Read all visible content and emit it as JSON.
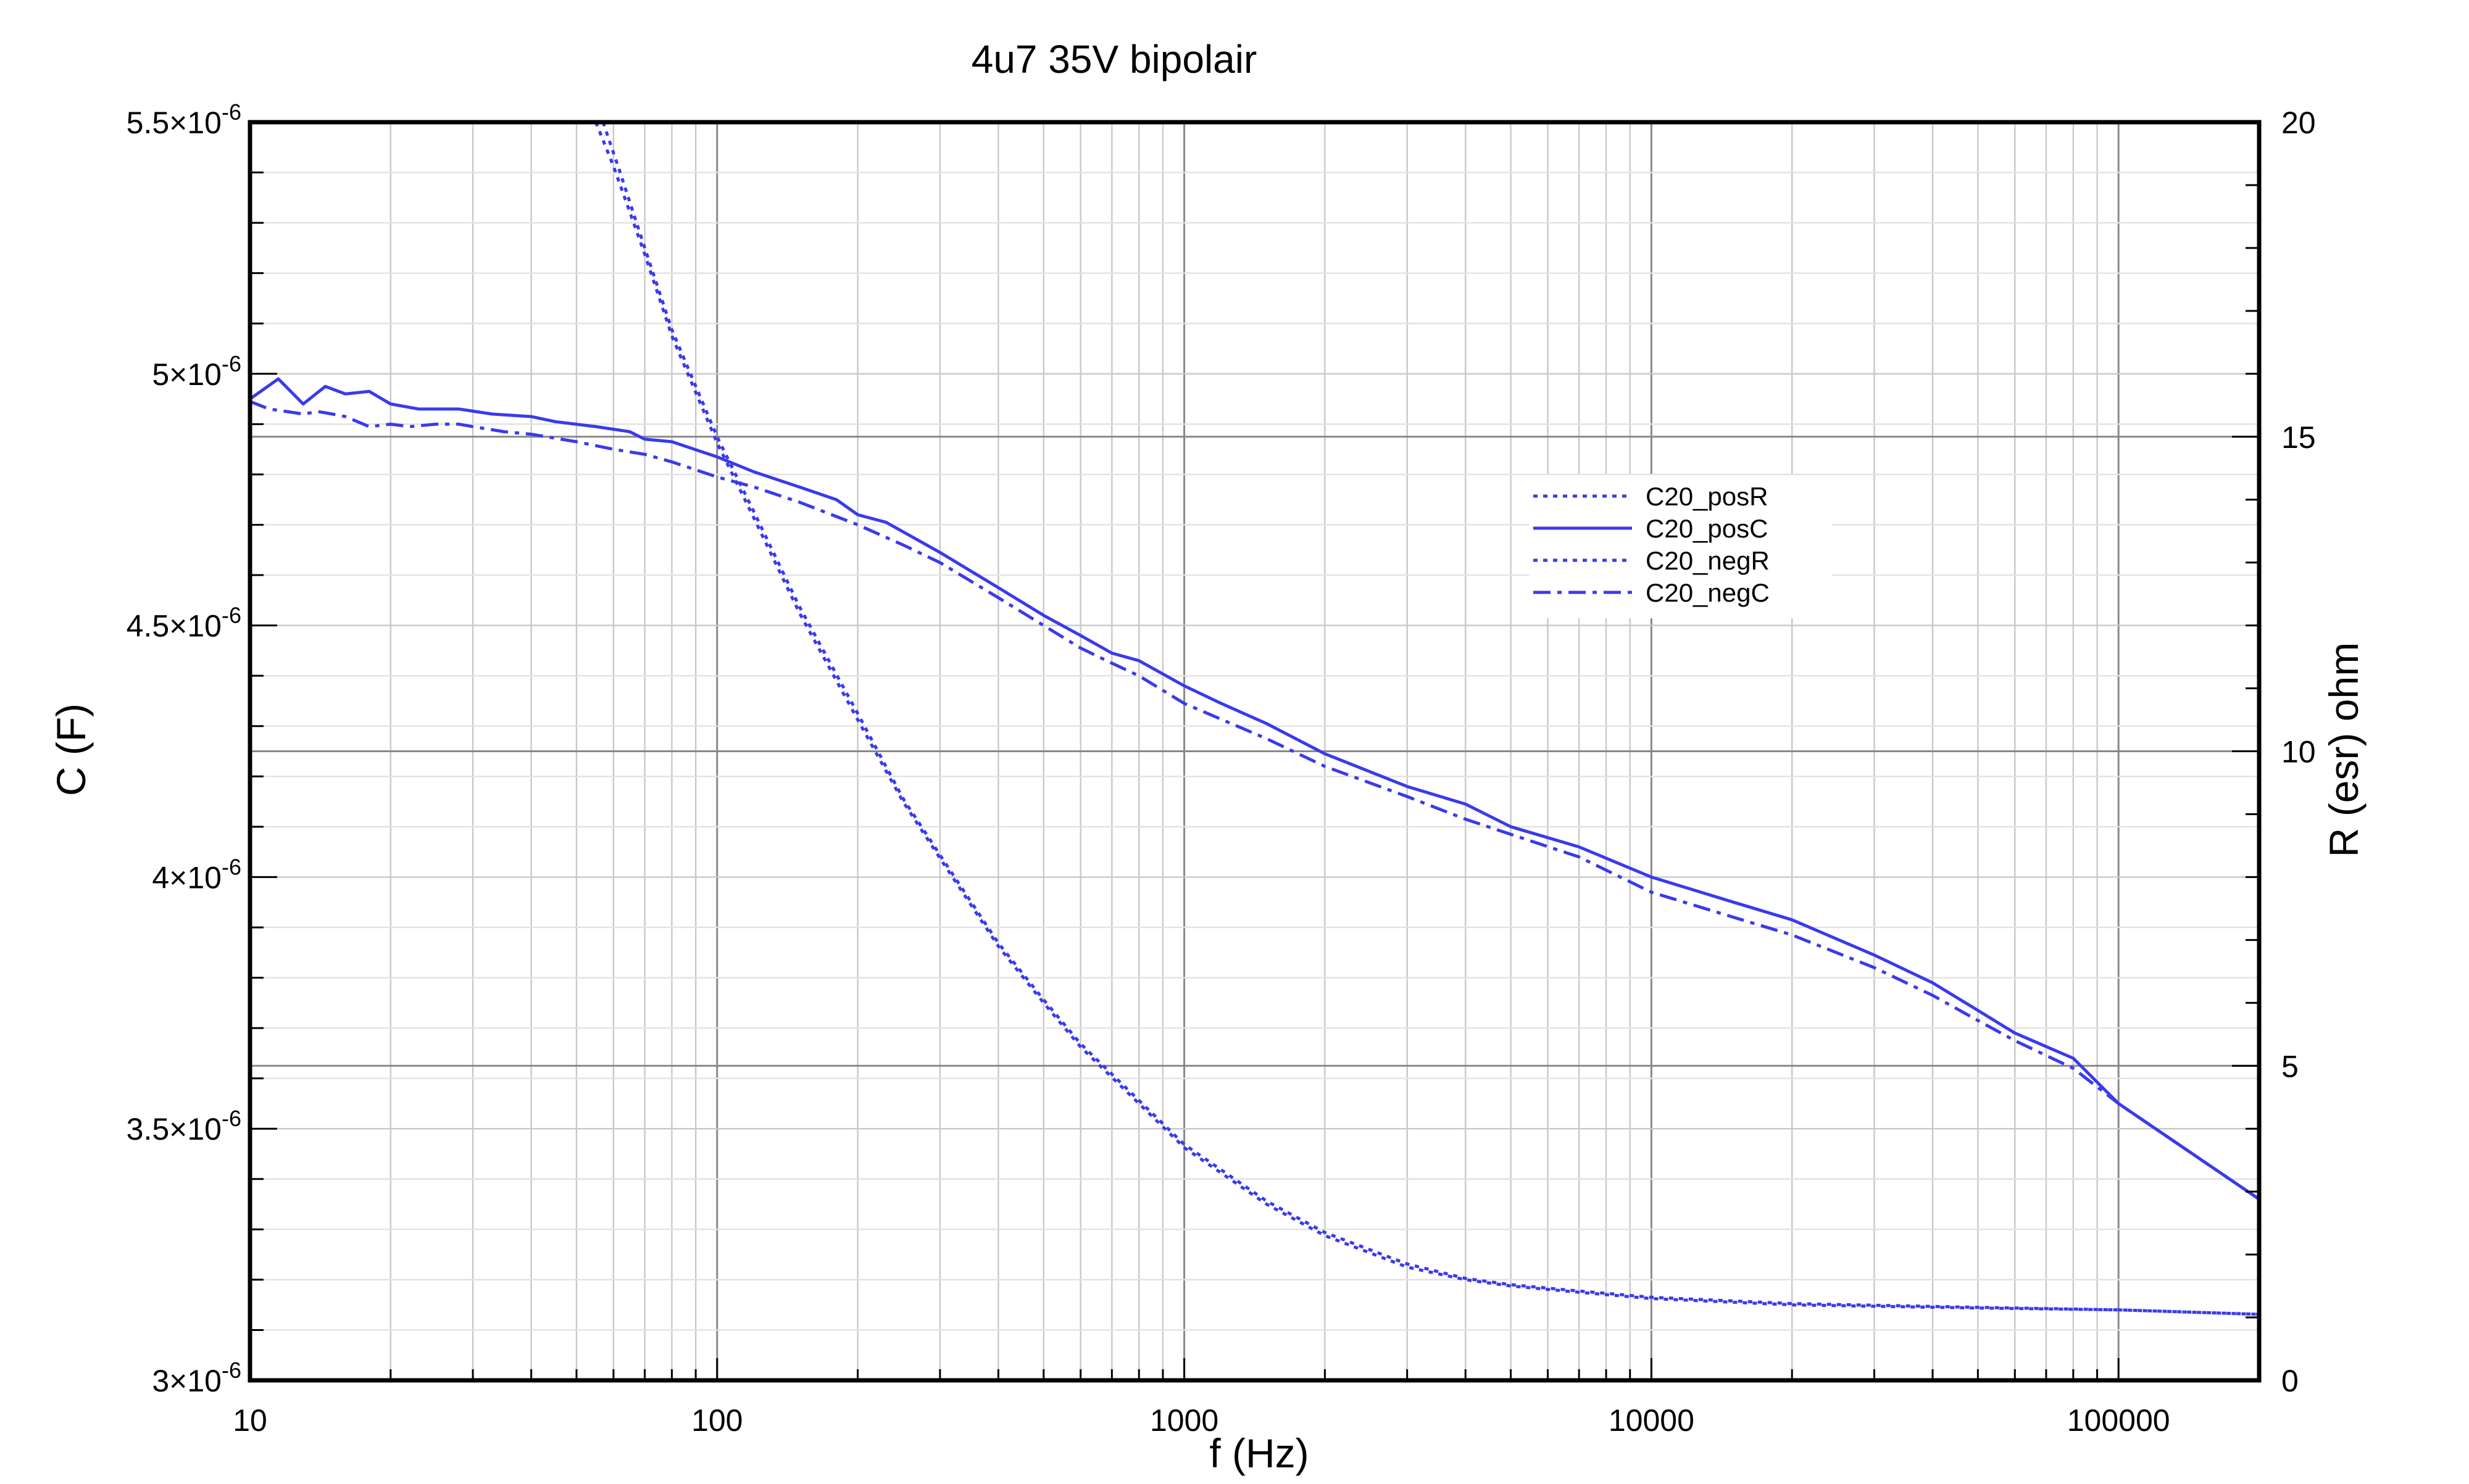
{
  "chart_data": {
    "type": "line",
    "title": "4u7 35V bipolair",
    "xlabel": "f (Hz)",
    "ylabel": "C (F)",
    "y2label": "R (esr) ohm",
    "x_scale": "log",
    "xlim": [
      10,
      200000
    ],
    "ylim": [
      3e-06,
      5.5e-06
    ],
    "y2lim": [
      0,
      20
    ],
    "grid": true,
    "legend_position": "center-right",
    "x_ticks": [
      {
        "value": 10,
        "label": "10"
      },
      {
        "value": 100,
        "label": "100"
      },
      {
        "value": 1000,
        "label": "1000"
      },
      {
        "value": 10000,
        "label": "10000"
      },
      {
        "value": 100000,
        "label": "100000"
      }
    ],
    "y_ticks": [
      {
        "value": 3e-06,
        "mant": "3",
        "exp": "-6"
      },
      {
        "value": 3.5e-06,
        "mant": "3.5",
        "exp": "-6"
      },
      {
        "value": 4e-06,
        "mant": "4",
        "exp": "-6"
      },
      {
        "value": 4.5e-06,
        "mant": "4.5",
        "exp": "-6"
      },
      {
        "value": 5e-06,
        "mant": "5",
        "exp": "-6"
      },
      {
        "value": 5.5e-06,
        "mant": "5.5",
        "exp": "-6"
      }
    ],
    "y2_ticks": [
      {
        "value": 0,
        "label": "0"
      },
      {
        "value": 5,
        "label": "5"
      },
      {
        "value": 10,
        "label": "10"
      },
      {
        "value": 15,
        "label": "15"
      },
      {
        "value": 20,
        "label": "20"
      }
    ],
    "series": [
      {
        "name": "C20_posR",
        "axis": "y2",
        "dash": "dotted",
        "color": "#3a3aeb",
        "x": [
          55,
          60,
          70,
          80,
          100,
          120,
          150,
          200,
          250,
          300,
          400,
          500,
          600,
          800,
          1000,
          1500,
          2000,
          3000,
          4000,
          5000,
          7000,
          10000,
          20000,
          50000,
          100000,
          200000
        ],
        "y": [
          20,
          19.3,
          17.9,
          16.6,
          14.9,
          13.7,
          12.2,
          10.5,
          9.2,
          8.3,
          6.9,
          6.0,
          5.3,
          4.4,
          3.7,
          2.8,
          2.3,
          1.8,
          1.6,
          1.5,
          1.4,
          1.3,
          1.2,
          1.15,
          1.12,
          1.05
        ]
      },
      {
        "name": "C20_posC",
        "axis": "y",
        "dash": "solid",
        "color": "#3a3aeb",
        "x": [
          10,
          11.5,
          13,
          14.5,
          16,
          18,
          20,
          23,
          28,
          33,
          40,
          45,
          55,
          65,
          70,
          80,
          100,
          120,
          150,
          180,
          200,
          230,
          300,
          400,
          500,
          600,
          700,
          800,
          1000,
          1200,
          1500,
          2000,
          3000,
          4000,
          5000,
          7000,
          10000,
          15000,
          20000,
          30000,
          40000,
          50000,
          60000,
          80000,
          100000,
          200000
        ],
        "y": [
          4.95e-06,
          4.99e-06,
          4.94e-06,
          4.975e-06,
          4.96e-06,
          4.965e-06,
          4.94e-06,
          4.93e-06,
          4.93e-06,
          4.92e-06,
          4.915e-06,
          4.905e-06,
          4.895e-06,
          4.885e-06,
          4.87e-06,
          4.865e-06,
          4.835e-06,
          4.805e-06,
          4.775e-06,
          4.75e-06,
          4.72e-06,
          4.705e-06,
          4.645e-06,
          4.575e-06,
          4.52e-06,
          4.48e-06,
          4.445e-06,
          4.43e-06,
          4.38e-06,
          4.345e-06,
          4.305e-06,
          4.245e-06,
          4.18e-06,
          4.145e-06,
          4.1e-06,
          4.06e-06,
          4e-06,
          3.95e-06,
          3.915e-06,
          3.845e-06,
          3.79e-06,
          3.735e-06,
          3.69e-06,
          3.64e-06,
          3.55e-06,
          3.36e-06
        ]
      },
      {
        "name": "C20_negR",
        "axis": "y2",
        "dash": "dotted",
        "color": "#3a3aeb",
        "x": [
          57,
          62,
          70,
          80,
          100,
          120,
          150,
          200,
          250,
          300,
          400,
          500,
          600,
          800,
          1000,
          1500,
          2000,
          3000,
          4000,
          5000,
          7000,
          10000,
          20000,
          50000,
          100000,
          200000
        ],
        "y": [
          20,
          19.2,
          18.0,
          16.7,
          15.0,
          13.8,
          12.3,
          10.6,
          9.25,
          8.35,
          6.95,
          6.05,
          5.35,
          4.45,
          3.75,
          2.85,
          2.35,
          1.85,
          1.62,
          1.52,
          1.42,
          1.32,
          1.22,
          1.16,
          1.12,
          1.05
        ]
      },
      {
        "name": "C20_negC",
        "axis": "y",
        "dash": "dashdot",
        "color": "#3a3aeb",
        "x": [
          10,
          11,
          12,
          13,
          14,
          15,
          16,
          18,
          20,
          22,
          25,
          28,
          30,
          35,
          40,
          50,
          60,
          70,
          80,
          100,
          120,
          150,
          200,
          250,
          300,
          400,
          500,
          600,
          700,
          800,
          1000,
          1500,
          2000,
          3000,
          4000,
          5000,
          7000,
          10000,
          15000,
          20000,
          30000,
          40000,
          50000,
          60000,
          80000,
          100000,
          200000
        ],
        "y": [
          4.945e-06,
          4.93e-06,
          4.925e-06,
          4.92e-06,
          4.925e-06,
          4.92e-06,
          4.915e-06,
          4.895e-06,
          4.9e-06,
          4.895e-06,
          4.9e-06,
          4.9e-06,
          4.895e-06,
          4.885e-06,
          4.88e-06,
          4.865e-06,
          4.85e-06,
          4.84e-06,
          4.825e-06,
          4.795e-06,
          4.775e-06,
          4.745e-06,
          4.7e-06,
          4.66e-06,
          4.625e-06,
          4.555e-06,
          4.5e-06,
          4.455e-06,
          4.425e-06,
          4.4e-06,
          4.345e-06,
          4.275e-06,
          4.22e-06,
          4.16e-06,
          4.115e-06,
          4.085e-06,
          4.04e-06,
          3.97e-06,
          3.92e-06,
          3.885e-06,
          3.82e-06,
          3.765e-06,
          3.715e-06,
          3.675e-06,
          3.62e-06,
          3.55e-06,
          3.36e-06
        ]
      }
    ]
  }
}
